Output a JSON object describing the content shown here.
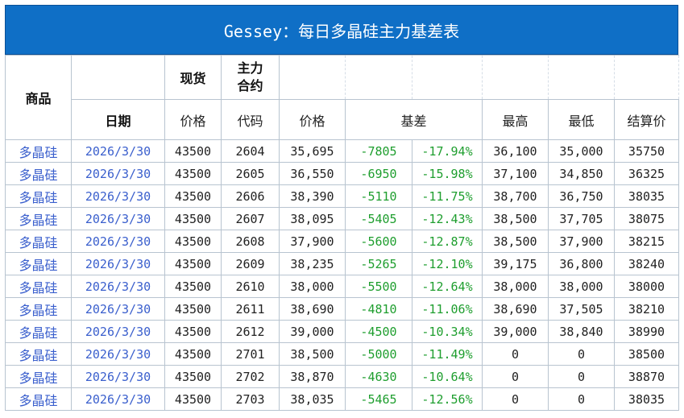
{
  "title": "Gessey：每日多晶硅主力基差表",
  "headers": {
    "product": "商品",
    "spot": "现货",
    "main_contract": "主力\n合约",
    "date": "日期",
    "price": "价格",
    "code": "代码",
    "contract_price": "价格",
    "basis": "基差",
    "high": "最高",
    "low": "最低",
    "settle": "结算价"
  },
  "rows": [
    {
      "product": "多晶硅",
      "date": "2026/3/30",
      "spot": "43500",
      "code": "2604",
      "price": "35,695",
      "basis": "-7805",
      "basis_pct": "-17.94%",
      "high": "36,100",
      "low": "35,000",
      "settle": "35750"
    },
    {
      "product": "多晶硅",
      "date": "2026/3/30",
      "spot": "43500",
      "code": "2605",
      "price": "36,550",
      "basis": "-6950",
      "basis_pct": "-15.98%",
      "high": "37,100",
      "low": "34,850",
      "settle": "36325"
    },
    {
      "product": "多晶硅",
      "date": "2026/3/30",
      "spot": "43500",
      "code": "2606",
      "price": "38,390",
      "basis": "-5110",
      "basis_pct": "-11.75%",
      "high": "38,700",
      "low": "36,750",
      "settle": "38035"
    },
    {
      "product": "多晶硅",
      "date": "2026/3/30",
      "spot": "43500",
      "code": "2607",
      "price": "38,095",
      "basis": "-5405",
      "basis_pct": "-12.43%",
      "high": "38,500",
      "low": "37,705",
      "settle": "38075"
    },
    {
      "product": "多晶硅",
      "date": "2026/3/30",
      "spot": "43500",
      "code": "2608",
      "price": "37,900",
      "basis": "-5600",
      "basis_pct": "-12.87%",
      "high": "38,500",
      "low": "37,900",
      "settle": "38215"
    },
    {
      "product": "多晶硅",
      "date": "2026/3/30",
      "spot": "43500",
      "code": "2609",
      "price": "38,235",
      "basis": "-5265",
      "basis_pct": "-12.10%",
      "high": "39,175",
      "low": "36,800",
      "settle": "38240"
    },
    {
      "product": "多晶硅",
      "date": "2026/3/30",
      "spot": "43500",
      "code": "2610",
      "price": "38,000",
      "basis": "-5500",
      "basis_pct": "-12.64%",
      "high": "38,000",
      "low": "38,000",
      "settle": "38000"
    },
    {
      "product": "多晶硅",
      "date": "2026/3/30",
      "spot": "43500",
      "code": "2611",
      "price": "38,690",
      "basis": "-4810",
      "basis_pct": "-11.06%",
      "high": "38,690",
      "low": "37,505",
      "settle": "38210"
    },
    {
      "product": "多晶硅",
      "date": "2026/3/30",
      "spot": "43500",
      "code": "2612",
      "price": "39,000",
      "basis": "-4500",
      "basis_pct": "-10.34%",
      "high": "39,000",
      "low": "38,840",
      "settle": "38990"
    },
    {
      "product": "多晶硅",
      "date": "2026/3/30",
      "spot": "43500",
      "code": "2701",
      "price": "38,500",
      "basis": "-5000",
      "basis_pct": "-11.49%",
      "high": "0",
      "low": "0",
      "settle": "38500"
    },
    {
      "product": "多晶硅",
      "date": "2026/3/30",
      "spot": "43500",
      "code": "2702",
      "price": "38,870",
      "basis": "-4630",
      "basis_pct": "-10.64%",
      "high": "0",
      "low": "0",
      "settle": "38870"
    },
    {
      "product": "多晶硅",
      "date": "2026/3/30",
      "spot": "43500",
      "code": "2703",
      "price": "38,035",
      "basis": "-5465",
      "basis_pct": "-12.56%",
      "high": "0",
      "low": "0",
      "settle": "38035"
    }
  ],
  "colors": {
    "title_bg": "#0f6fc6",
    "link_blue": "#3a5fcd",
    "basis_green": "#1e9e2e"
  }
}
